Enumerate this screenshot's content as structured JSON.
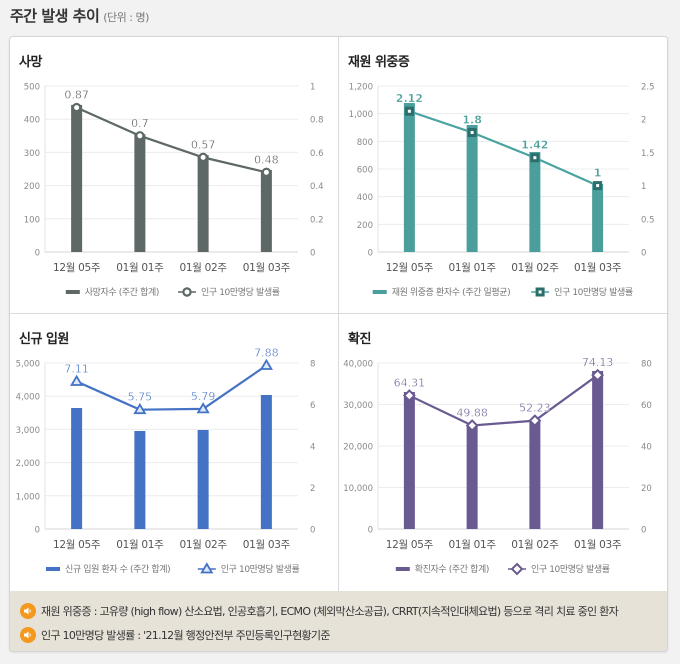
{
  "page": {
    "title": "주간 발생 추이",
    "unit": "(단위 : 명)"
  },
  "notes": [
    {
      "icon": "speaker-icon",
      "text": "재원 위중증 : 고유량 (high flow) 산소요법, 인공호흡기, ECMO (체외막산소공급), CRRT(지속적인대체요법) 등으로 격리 치료 중인 환자"
    },
    {
      "icon": "speaker-icon",
      "text": "인구 10만명당 발생률 : '21.12월 행정안전부 주민등록인구현황기준"
    }
  ],
  "chart_data": [
    {
      "type": "bar+line",
      "title": "사망",
      "categories": [
        "12월 05주",
        "01월 01주",
        "01월 02주",
        "01월 03주"
      ],
      "color": "#5d6867",
      "marker": "circle",
      "series": [
        {
          "name": "사망자수 (주간 합계)",
          "axis": "left",
          "kind": "bar",
          "values": [
            443,
            355,
            292,
            247
          ]
        },
        {
          "name": "인구 10만명당 발생률",
          "axis": "right",
          "kind": "line",
          "values": [
            0.87,
            0.7,
            0.57,
            0.48
          ],
          "labels": [
            "0.87",
            "0.7",
            "0.57",
            "0.48"
          ]
        }
      ],
      "left_axis": {
        "min": 0,
        "max": 500,
        "ticks": [
          "0",
          "100",
          "200",
          "300",
          "400",
          "500"
        ]
      },
      "right_axis": {
        "min": 0,
        "max": 1,
        "ticks": [
          "0",
          "0.2",
          "0.4",
          "0.6",
          "0.8",
          "1"
        ]
      },
      "grid": true,
      "legend": "bottom"
    },
    {
      "type": "bar+line",
      "title": "재원 위중증",
      "categories": [
        "12월 05주",
        "01월 01주",
        "01월 02주",
        "01월 03주"
      ],
      "color": "#4a9e9b",
      "line_color": "#49a3a0",
      "marker_color": "#2b6e6c",
      "marker": "square",
      "series": [
        {
          "name": "재원 위중증 환자수 (주간 일평균)",
          "axis": "left",
          "kind": "bar",
          "values": [
            1077,
            918,
            723,
            492
          ]
        },
        {
          "name": "인구 10만명당 발생률",
          "axis": "right",
          "kind": "line",
          "values": [
            2.12,
            1.8,
            1.42,
            1
          ],
          "labels": [
            "2.12",
            "1.8",
            "1.42",
            "1"
          ]
        }
      ],
      "left_axis": {
        "min": 0,
        "max": 1200,
        "ticks": [
          "0",
          "200",
          "400",
          "600",
          "800",
          "1,000",
          "1,200"
        ]
      },
      "right_axis": {
        "min": 0,
        "max": 2.5,
        "ticks": [
          "0",
          "0.5",
          "1",
          "1.5",
          "2",
          "2.5"
        ]
      },
      "grid": true,
      "legend": "bottom"
    },
    {
      "type": "bar+line",
      "title": "신규 입원",
      "categories": [
        "12월 05주",
        "01월 01주",
        "01월 02주",
        "01월 03주"
      ],
      "color": "#4472c4",
      "marker": "triangle",
      "series": [
        {
          "name": "신규 입원 환자 수 (주간 합계)",
          "axis": "left",
          "kind": "bar",
          "values": [
            3645,
            2952,
            2982,
            4036
          ]
        },
        {
          "name": "인구 10만명당 발생률",
          "axis": "right",
          "kind": "line",
          "values": [
            7.11,
            5.75,
            5.79,
            7.88
          ],
          "labels": [
            "7.11",
            "5.75",
            "5.79",
            "7.88"
          ]
        }
      ],
      "left_axis": {
        "min": 0,
        "max": 5000,
        "ticks": [
          "0",
          "1,000",
          "2,000",
          "3,000",
          "4,000",
          "5,000"
        ]
      },
      "right_axis": {
        "min": 0,
        "max": 8,
        "ticks": [
          "0",
          "2",
          "4",
          "6",
          "8"
        ]
      },
      "grid": true,
      "legend": "bottom"
    },
    {
      "type": "bar+line",
      "title": "확진",
      "categories": [
        "12월 05주",
        "01월 01주",
        "01월 02주",
        "01월 03주"
      ],
      "color": "#6a5a92",
      "marker": "diamond",
      "series": [
        {
          "name": "확진자수 (주간 합계)",
          "axis": "left",
          "kind": "bar",
          "values": [
            33012,
            24819,
            26265,
            38072
          ]
        },
        {
          "name": "인구 10만명당 발생률",
          "axis": "right",
          "kind": "line",
          "values": [
            64.31,
            49.88,
            52.23,
            74.13
          ],
          "labels": [
            "64.31",
            "49.88",
            "52.23",
            "74.13"
          ]
        }
      ],
      "left_axis": {
        "min": 0,
        "max": 40000,
        "ticks": [
          "0",
          "10,000",
          "20,000",
          "30,000",
          "40,000"
        ]
      },
      "right_axis": {
        "min": 0,
        "max": 80,
        "ticks": [
          "0",
          "20",
          "40",
          "60",
          "80"
        ]
      },
      "grid": true,
      "legend": "bottom"
    }
  ]
}
